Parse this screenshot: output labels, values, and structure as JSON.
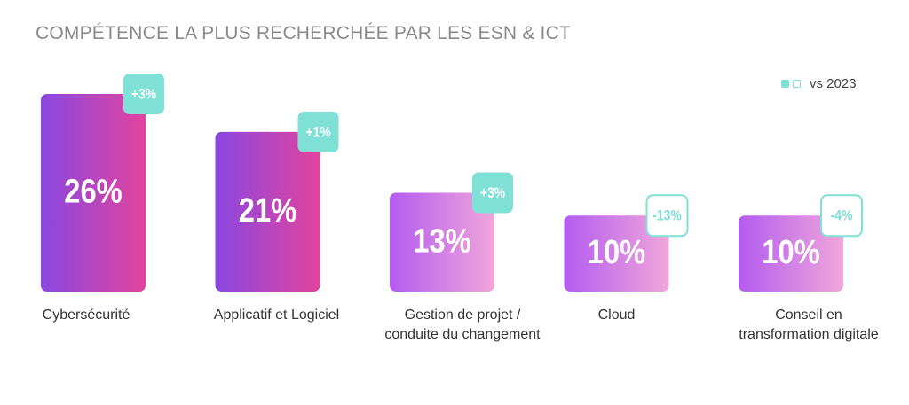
{
  "chart_data": {
    "type": "bar",
    "title": "COMPÉTENCE LA PLUS RECHERCHÉE PAR LES ESN & ICT",
    "legend_label": "vs 2023",
    "legend_placement": "top-right",
    "unit": "%",
    "categories": [
      "Cybersécurité",
      "Applicatif et Logiciel",
      "Gestion de projet / conduite du changement",
      "Cloud",
      "Conseil en transformation digitale"
    ],
    "category_lines": [
      [
        "Cybersécurité"
      ],
      [
        "Applicatif et Logiciel"
      ],
      [
        "Gestion de projet /",
        "conduite du changement"
      ],
      [
        "Cloud"
      ],
      [
        "Conseil en",
        "transformation digitale"
      ]
    ],
    "values": [
      26,
      21,
      13,
      10,
      10
    ],
    "value_labels": [
      "26%",
      "21%",
      "13%",
      "10%",
      "10%"
    ],
    "changes": [
      3,
      1,
      3,
      -13,
      -4
    ],
    "change_labels": [
      "+3%",
      "+1%",
      "+3%",
      "-13%",
      "-4%"
    ],
    "ylim": [
      0,
      26
    ],
    "grid": false,
    "colors": {
      "accent": "#7fe0d6",
      "bar_strong_start": "#8a47e0",
      "bar_strong_end": "#e2449e",
      "bar_soft_start": "#b45cf0",
      "bar_soft_end": "#f0a6da",
      "title": "#8a8a8a",
      "label": "#333333"
    }
  }
}
